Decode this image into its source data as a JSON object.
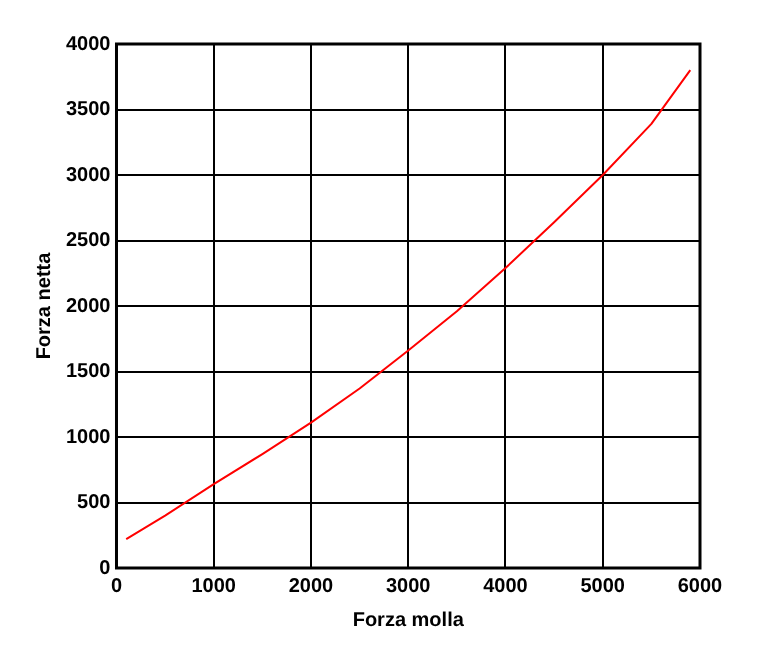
{
  "chart_data": {
    "type": "line",
    "xlabel": "Forza molla",
    "ylabel": "Forza netta",
    "x": [
      100,
      500,
      1000,
      1500,
      2000,
      2500,
      3000,
      3500,
      4000,
      4500,
      5000,
      5500,
      5900
    ],
    "series": [
      {
        "color": "#ff0000",
        "values": [
          220,
          400,
          640,
          870,
          1110,
          1370,
          1660,
          1960,
          2290,
          2640,
          3000,
          3390,
          3800
        ]
      }
    ],
    "xlim": [
      0,
      6000
    ],
    "xticks": [
      0,
      1000,
      2000,
      3000,
      4000,
      5000,
      6000
    ],
    "ylim": [
      0,
      4000
    ],
    "yticks": [
      0,
      500,
      1000,
      1500,
      2000,
      2500,
      3000,
      3500,
      4000
    ],
    "grid": true,
    "legend": false,
    "marker": "none",
    "line_style": "solid"
  }
}
